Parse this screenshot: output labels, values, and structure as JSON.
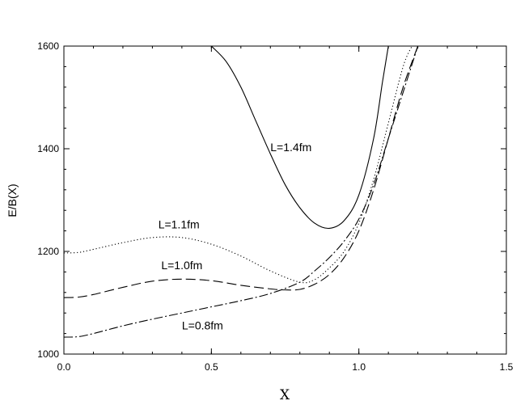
{
  "chart_data": {
    "type": "line",
    "xlabel": "X",
    "ylabel": "E/B(X)",
    "xlim": [
      0.0,
      1.5
    ],
    "ylim": [
      1000,
      1600
    ],
    "x_ticks": [
      {
        "value": 0.0,
        "label": "0.0"
      },
      {
        "value": 0.5,
        "label": "0.5"
      },
      {
        "value": 1.0,
        "label": "1.0"
      },
      {
        "value": 1.5,
        "label": "1.5"
      }
    ],
    "y_ticks": [
      {
        "value": 1000,
        "label": "1000"
      },
      {
        "value": 1200,
        "label": "1200"
      },
      {
        "value": 1400,
        "label": "1400"
      },
      {
        "value": 1600,
        "label": "1600"
      }
    ],
    "grid": false,
    "series": [
      {
        "name": "L=1.4fm",
        "style": "solid",
        "label_at": [
          0.7,
          1395
        ],
        "points": [
          [
            0.5,
            1600
          ],
          [
            0.55,
            1570
          ],
          [
            0.6,
            1520
          ],
          [
            0.65,
            1455
          ],
          [
            0.7,
            1390
          ],
          [
            0.75,
            1330
          ],
          [
            0.8,
            1285
          ],
          [
            0.85,
            1255
          ],
          [
            0.9,
            1245
          ],
          [
            0.95,
            1260
          ],
          [
            1.0,
            1310
          ],
          [
            1.05,
            1420
          ],
          [
            1.08,
            1530
          ],
          [
            1.1,
            1600
          ]
        ]
      },
      {
        "name": "L=1.1fm",
        "style": "dotted",
        "label_at": [
          0.32,
          1245
        ],
        "points": [
          [
            0.0,
            1197
          ],
          [
            0.05,
            1198
          ],
          [
            0.1,
            1204
          ],
          [
            0.2,
            1217
          ],
          [
            0.3,
            1227
          ],
          [
            0.4,
            1227
          ],
          [
            0.5,
            1214
          ],
          [
            0.6,
            1191
          ],
          [
            0.7,
            1162
          ],
          [
            0.8,
            1140
          ],
          [
            0.85,
            1145
          ],
          [
            0.9,
            1168
          ],
          [
            0.95,
            1200
          ],
          [
            1.0,
            1255
          ],
          [
            1.05,
            1340
          ],
          [
            1.1,
            1450
          ],
          [
            1.15,
            1560
          ],
          [
            1.18,
            1600
          ]
        ]
      },
      {
        "name": "L=1.0fm",
        "style": "dashed",
        "label_at": [
          0.33,
          1165
        ],
        "points": [
          [
            0.0,
            1110
          ],
          [
            0.05,
            1111
          ],
          [
            0.1,
            1116
          ],
          [
            0.2,
            1130
          ],
          [
            0.3,
            1142
          ],
          [
            0.4,
            1146
          ],
          [
            0.5,
            1143
          ],
          [
            0.6,
            1134
          ],
          [
            0.7,
            1127
          ],
          [
            0.75,
            1125
          ],
          [
            0.8,
            1126
          ],
          [
            0.85,
            1136
          ],
          [
            0.9,
            1155
          ],
          [
            0.95,
            1188
          ],
          [
            1.0,
            1240
          ],
          [
            1.05,
            1320
          ],
          [
            1.1,
            1420
          ],
          [
            1.15,
            1520
          ],
          [
            1.2,
            1600
          ]
        ]
      },
      {
        "name": "L=0.8fm",
        "style": "dash-dot",
        "label_at": [
          0.4,
          1048
        ],
        "points": [
          [
            0.0,
            1033
          ],
          [
            0.05,
            1034
          ],
          [
            0.1,
            1040
          ],
          [
            0.2,
            1055
          ],
          [
            0.3,
            1068
          ],
          [
            0.4,
            1080
          ],
          [
            0.5,
            1092
          ],
          [
            0.6,
            1104
          ],
          [
            0.7,
            1118
          ],
          [
            0.8,
            1140
          ],
          [
            0.85,
            1162
          ],
          [
            0.9,
            1188
          ],
          [
            0.95,
            1220
          ],
          [
            1.0,
            1263
          ],
          [
            1.05,
            1330
          ],
          [
            1.1,
            1420
          ],
          [
            1.15,
            1510
          ],
          [
            1.2,
            1600
          ]
        ]
      }
    ]
  }
}
